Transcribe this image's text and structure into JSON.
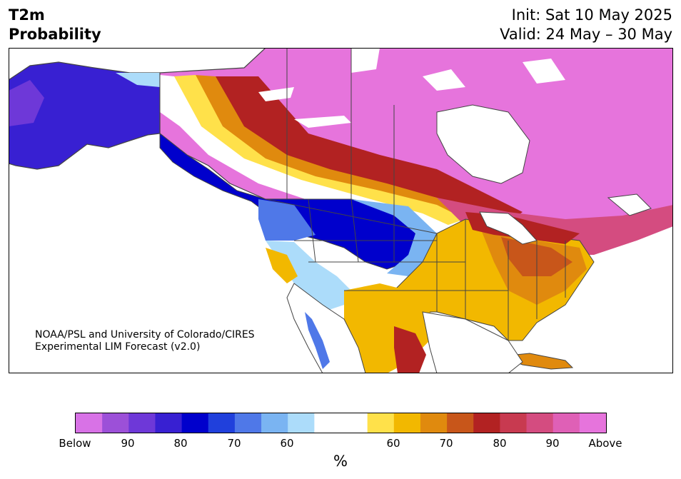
{
  "title": {
    "left_line1": "T2m",
    "left_line2": "Probability",
    "init": "Init: Sat 10 May 2025",
    "valid": "Valid: 24 May – 30 May"
  },
  "credit": {
    "line1": "NOAA/PSL and University of Colorado/CIRES",
    "line2": "Experimental LIM Forecast (v2.0)"
  },
  "colorbar": {
    "colors": [
      "#d872e6",
      "#9c50d8",
      "#6e38d8",
      "#3820d2",
      "#0000cc",
      "#2040dc",
      "#4f78e8",
      "#7ab4f2",
      "#acdcfa",
      "#ffffff",
      "#ffffff",
      "#ffe14a",
      "#f2b800",
      "#e08a0e",
      "#c8561a",
      "#b22222",
      "#c83a50",
      "#d44c80",
      "#df60b6",
      "#e674dc"
    ],
    "labels": [
      "Below",
      "90",
      "80",
      "70",
      "60",
      "60",
      "70",
      "80",
      "90",
      "Above"
    ],
    "unit": "%"
  },
  "map_colors": {
    "ocean": "#ffffff",
    "border": "#444444"
  }
}
